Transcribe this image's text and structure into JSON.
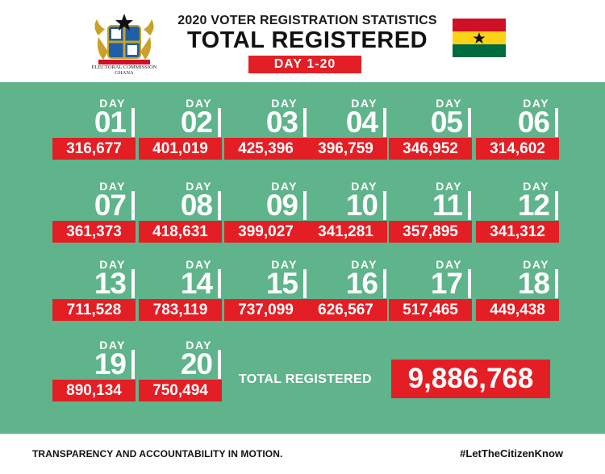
{
  "header": {
    "subtitle": "2020 VOTER REGISTRATION STATISTICS",
    "title": "TOTAL REGISTERED",
    "badge": "DAY 1-20",
    "logo_caption_line1": "ELECTORAL COMMISSION",
    "logo_caption_line2": "GHANA"
  },
  "colors": {
    "board": "#5fb48b",
    "accent_red": "#e31e24",
    "flag_red": "#ce1126",
    "flag_gold": "#fcd116",
    "flag_green": "#006b3f"
  },
  "day_label": "DAY",
  "days": [
    {
      "day": "01",
      "value": "316,677"
    },
    {
      "day": "02",
      "value": "401,019"
    },
    {
      "day": "03",
      "value": "425,396"
    },
    {
      "day": "04",
      "value": "396,759"
    },
    {
      "day": "05",
      "value": "346,952"
    },
    {
      "day": "06",
      "value": "314,602"
    },
    {
      "day": "07",
      "value": "361,373"
    },
    {
      "day": "08",
      "value": "418,631"
    },
    {
      "day": "09",
      "value": "399,027"
    },
    {
      "day": "10",
      "value": "341,281"
    },
    {
      "day": "11",
      "value": "357,895"
    },
    {
      "day": "12",
      "value": "341,312"
    },
    {
      "day": "13",
      "value": "711,528"
    },
    {
      "day": "14",
      "value": "783,119"
    },
    {
      "day": "15",
      "value": "737,099"
    },
    {
      "day": "16",
      "value": "626,567"
    },
    {
      "day": "17",
      "value": "517,465"
    },
    {
      "day": "18",
      "value": "449,438"
    },
    {
      "day": "19",
      "value": "890,134"
    },
    {
      "day": "20",
      "value": "750,494"
    }
  ],
  "total": {
    "label": "TOTAL REGISTERED",
    "value": "9,886,768"
  },
  "footer": {
    "tagline": "TRANSPARENCY AND ACCOUNTABILITY IN MOTION.",
    "hashtag": "#LetTheCitizenKnow"
  }
}
